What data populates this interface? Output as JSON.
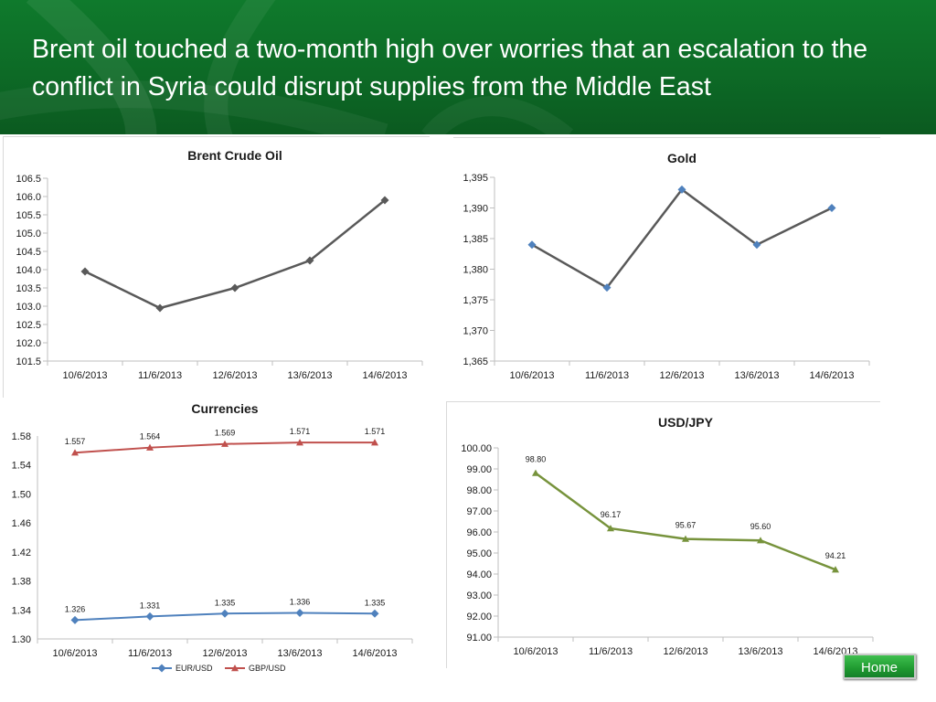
{
  "slide": {
    "title": "Brent oil touched a two-month high over worries that an escalation to the conflict in Syria could disrupt supplies from the Middle East",
    "home_label": "Home"
  },
  "colors": {
    "header": "#0d6a26",
    "grey_series": "#595959",
    "gold_marker": "#4f81bd",
    "eur_usd": "#4f81bd",
    "gbp_usd": "#c0504d",
    "usd_jpy": "#77933c"
  },
  "chart_data": [
    {
      "id": "brent",
      "type": "line",
      "title": "Brent Crude Oil",
      "categories": [
        "10/6/2013",
        "11/6/2013",
        "12/6/2013",
        "13/6/2013",
        "14/6/2013"
      ],
      "series": [
        {
          "values": [
            103.95,
            102.95,
            103.5,
            104.25,
            105.9
          ],
          "color": "#595959",
          "marker": "diamond"
        }
      ],
      "ylim": [
        101.5,
        106.5
      ],
      "yticks": [
        101.5,
        102.0,
        102.5,
        103.0,
        103.5,
        104.0,
        104.5,
        105.0,
        105.5,
        106.0,
        106.5
      ],
      "ytick_labels": [
        "101.5",
        "102.0",
        "102.5",
        "103.0",
        "103.5",
        "104.0",
        "104.5",
        "105.0",
        "105.5",
        "106.0",
        "106.5"
      ],
      "grid": false,
      "legend": "none",
      "data_labels": false
    },
    {
      "id": "gold",
      "type": "line",
      "title": "Gold",
      "categories": [
        "10/6/2013",
        "11/6/2013",
        "12/6/2013",
        "13/6/2013",
        "14/6/2013"
      ],
      "series": [
        {
          "values": [
            1384,
            1377,
            1393,
            1384,
            1390
          ],
          "color": "#595959",
          "marker_color": "#4f81bd",
          "marker": "diamond"
        }
      ],
      "ylim": [
        1365,
        1395
      ],
      "yticks": [
        1365,
        1370,
        1375,
        1380,
        1385,
        1390,
        1395
      ],
      "ytick_labels": [
        "1,365",
        "1,370",
        "1,375",
        "1,380",
        "1,385",
        "1,390",
        "1,395"
      ],
      "grid": false,
      "legend": "none",
      "data_labels": false
    },
    {
      "id": "currencies",
      "type": "line",
      "title": "Currencies",
      "categories": [
        "10/6/2013",
        "11/6/2013",
        "12/6/2013",
        "13/6/2013",
        "14/6/2013"
      ],
      "series": [
        {
          "name": "EUR/USD",
          "values": [
            1.326,
            1.331,
            1.335,
            1.336,
            1.335
          ],
          "labels": [
            "1.326",
            "1.331",
            "1.335",
            "1.336",
            "1.335"
          ],
          "color": "#4f81bd",
          "marker": "diamond"
        },
        {
          "name": "GBP/USD",
          "values": [
            1.557,
            1.564,
            1.569,
            1.571,
            1.571
          ],
          "labels": [
            "1.557",
            "1.564",
            "1.569",
            "1.571",
            "1.571"
          ],
          "color": "#c0504d",
          "marker": "triangle"
        }
      ],
      "ylim": [
        1.3,
        1.58
      ],
      "yticks": [
        1.3,
        1.34,
        1.38,
        1.42,
        1.46,
        1.5,
        1.54,
        1.58
      ],
      "ytick_labels": [
        "1.30",
        "1.34",
        "1.38",
        "1.42",
        "1.46",
        "1.50",
        "1.54",
        "1.58"
      ],
      "grid": false,
      "legend": "bottom",
      "data_labels": true
    },
    {
      "id": "usdjpy",
      "type": "line",
      "title": "USD/JPY",
      "categories": [
        "10/6/2013",
        "11/6/2013",
        "12/6/2013",
        "13/6/2013",
        "14/6/2013"
      ],
      "series": [
        {
          "values": [
            98.8,
            96.17,
            95.67,
            95.6,
            94.21
          ],
          "labels": [
            "98.80",
            "96.17",
            "95.67",
            "95.60",
            "94.21"
          ],
          "color": "#77933c",
          "marker": "triangle"
        }
      ],
      "ylim": [
        91.0,
        100.0
      ],
      "yticks": [
        91,
        92,
        93,
        94,
        95,
        96,
        97,
        98,
        99,
        100
      ],
      "ytick_labels": [
        "91.00",
        "92.00",
        "93.00",
        "94.00",
        "95.00",
        "96.00",
        "97.00",
        "98.00",
        "99.00",
        "100.00"
      ],
      "grid": false,
      "legend": "none",
      "data_labels": true
    }
  ]
}
